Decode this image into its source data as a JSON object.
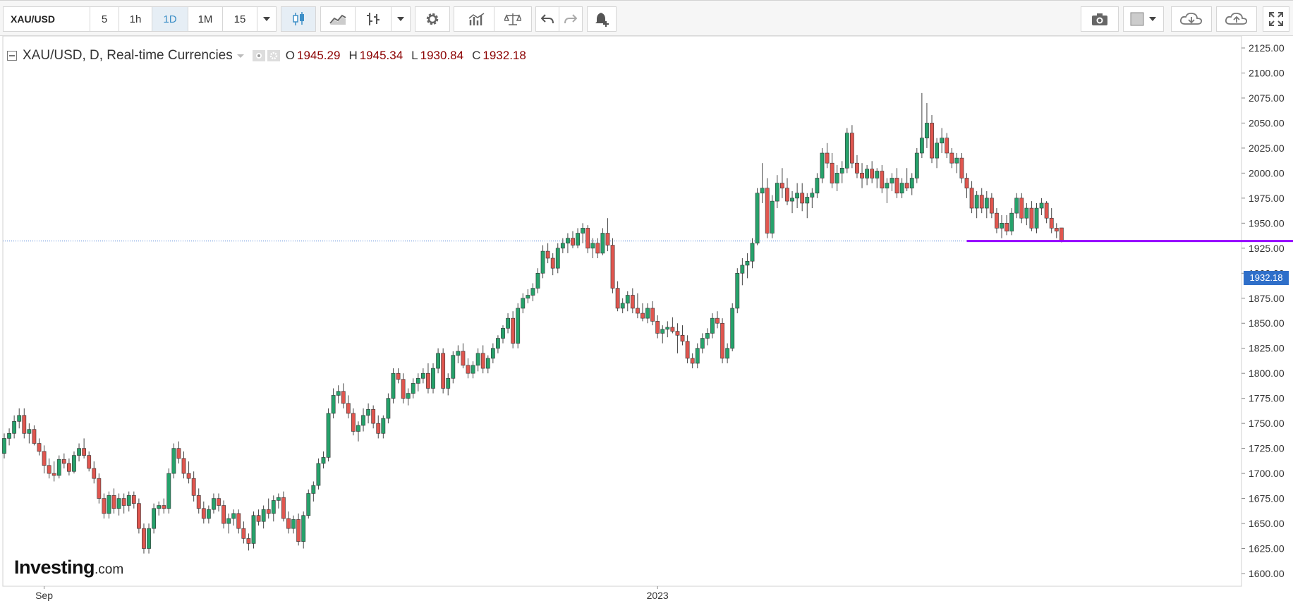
{
  "toolbar": {
    "symbol": "XAU/USD",
    "intervals": [
      "5",
      "1h",
      "1D",
      "1M",
      "15"
    ],
    "active_interval": "1D"
  },
  "legend": {
    "title": "XAU/USD, D, Real-time Currencies",
    "open_label": "O",
    "open": "1945.29",
    "high_label": "H",
    "high": "1945.34",
    "low_label": "L",
    "low": "1930.84",
    "close_label": "C",
    "close": "1932.18"
  },
  "logo": {
    "main": "Investing",
    "suffix": ".com"
  },
  "last_price_label": "1932.18",
  "colors": {
    "up": "#26a26b",
    "down": "#e0564f",
    "horizontal_line": "#9400ff",
    "price_tag": "#2f6fc9",
    "grid": "#ffffff"
  },
  "chart_data": {
    "type": "candlestick",
    "y_ticks": [
      "2125.00",
      "2100.00",
      "2075.00",
      "2050.00",
      "2025.00",
      "2000.00",
      "1975.00",
      "1950.00",
      "1925.00",
      "1900.00",
      "1875.00",
      "1850.00",
      "1825.00",
      "1800.00",
      "1775.00",
      "1750.00",
      "1725.00",
      "1700.00",
      "1675.00",
      "1650.00",
      "1625.00",
      "1600.00"
    ],
    "ylim": [
      1590,
      2130
    ],
    "x_labels": [
      {
        "label": "Sep",
        "index": 8
      },
      {
        "label": "2023",
        "index": 131
      }
    ],
    "horizontal_line": {
      "value": 1932.18,
      "from_index": 193,
      "to_index": 377
    },
    "last_price": 1932.18,
    "candles": [
      [
        1720,
        1740,
        1715,
        1735
      ],
      [
        1735,
        1745,
        1728,
        1740
      ],
      [
        1740,
        1758,
        1735,
        1752
      ],
      [
        1752,
        1765,
        1745,
        1758
      ],
      [
        1758,
        1765,
        1735,
        1740
      ],
      [
        1740,
        1750,
        1730,
        1744
      ],
      [
        1744,
        1748,
        1728,
        1730
      ],
      [
        1730,
        1735,
        1718,
        1722
      ],
      [
        1722,
        1728,
        1700,
        1708
      ],
      [
        1708,
        1715,
        1695,
        1700
      ],
      [
        1700,
        1712,
        1692,
        1698
      ],
      [
        1698,
        1718,
        1695,
        1714
      ],
      [
        1714,
        1720,
        1705,
        1710
      ],
      [
        1710,
        1715,
        1698,
        1702
      ],
      [
        1702,
        1722,
        1700,
        1718
      ],
      [
        1718,
        1730,
        1712,
        1725
      ],
      [
        1725,
        1735,
        1715,
        1718
      ],
      [
        1718,
        1722,
        1702,
        1705
      ],
      [
        1705,
        1712,
        1690,
        1695
      ],
      [
        1695,
        1700,
        1670,
        1675
      ],
      [
        1675,
        1680,
        1655,
        1660
      ],
      [
        1660,
        1682,
        1655,
        1678
      ],
      [
        1678,
        1685,
        1660,
        1665
      ],
      [
        1665,
        1680,
        1658,
        1675
      ],
      [
        1675,
        1680,
        1660,
        1668
      ],
      [
        1668,
        1682,
        1662,
        1678
      ],
      [
        1678,
        1682,
        1665,
        1670
      ],
      [
        1670,
        1675,
        1640,
        1645
      ],
      [
        1645,
        1650,
        1620,
        1625
      ],
      [
        1625,
        1650,
        1620,
        1645
      ],
      [
        1645,
        1670,
        1640,
        1665
      ],
      [
        1665,
        1672,
        1658,
        1668
      ],
      [
        1668,
        1675,
        1660,
        1665
      ],
      [
        1665,
        1705,
        1660,
        1700
      ],
      [
        1700,
        1730,
        1695,
        1725
      ],
      [
        1725,
        1732,
        1710,
        1715
      ],
      [
        1715,
        1722,
        1695,
        1700
      ],
      [
        1700,
        1712,
        1690,
        1695
      ],
      [
        1695,
        1702,
        1672,
        1678
      ],
      [
        1678,
        1685,
        1660,
        1665
      ],
      [
        1665,
        1672,
        1650,
        1655
      ],
      [
        1655,
        1668,
        1650,
        1664
      ],
      [
        1664,
        1680,
        1660,
        1675
      ],
      [
        1675,
        1680,
        1662,
        1668
      ],
      [
        1668,
        1673,
        1645,
        1650
      ],
      [
        1650,
        1660,
        1640,
        1655
      ],
      [
        1655,
        1664,
        1648,
        1660
      ],
      [
        1660,
        1664,
        1640,
        1645
      ],
      [
        1645,
        1652,
        1630,
        1635
      ],
      [
        1635,
        1640,
        1623,
        1630
      ],
      [
        1630,
        1662,
        1625,
        1658
      ],
      [
        1658,
        1664,
        1648,
        1652
      ],
      [
        1652,
        1668,
        1645,
        1664
      ],
      [
        1664,
        1675,
        1655,
        1660
      ],
      [
        1660,
        1678,
        1652,
        1673
      ],
      [
        1673,
        1680,
        1665,
        1676
      ],
      [
        1676,
        1682,
        1652,
        1655
      ],
      [
        1655,
        1662,
        1640,
        1645
      ],
      [
        1645,
        1658,
        1640,
        1654
      ],
      [
        1654,
        1660,
        1628,
        1632
      ],
      [
        1632,
        1662,
        1625,
        1658
      ],
      [
        1658,
        1684,
        1655,
        1680
      ],
      [
        1680,
        1692,
        1672,
        1688
      ],
      [
        1688,
        1715,
        1684,
        1710
      ],
      [
        1710,
        1722,
        1705,
        1716
      ],
      [
        1716,
        1765,
        1712,
        1760
      ],
      [
        1760,
        1785,
        1755,
        1778
      ],
      [
        1778,
        1788,
        1770,
        1782
      ],
      [
        1782,
        1790,
        1765,
        1770
      ],
      [
        1770,
        1778,
        1755,
        1760
      ],
      [
        1760,
        1765,
        1738,
        1742
      ],
      [
        1742,
        1752,
        1732,
        1748
      ],
      [
        1748,
        1765,
        1742,
        1758
      ],
      [
        1758,
        1770,
        1750,
        1764
      ],
      [
        1764,
        1768,
        1745,
        1750
      ],
      [
        1750,
        1758,
        1735,
        1740
      ],
      [
        1740,
        1758,
        1735,
        1755
      ],
      [
        1755,
        1780,
        1750,
        1775
      ],
      [
        1775,
        1805,
        1770,
        1800
      ],
      [
        1800,
        1805,
        1790,
        1794
      ],
      [
        1794,
        1800,
        1770,
        1775
      ],
      [
        1775,
        1785,
        1768,
        1780
      ],
      [
        1780,
        1795,
        1775,
        1790
      ],
      [
        1790,
        1800,
        1782,
        1795
      ],
      [
        1795,
        1805,
        1790,
        1800
      ],
      [
        1800,
        1810,
        1780,
        1785
      ],
      [
        1785,
        1810,
        1780,
        1805
      ],
      [
        1805,
        1825,
        1800,
        1820
      ],
      [
        1820,
        1825,
        1780,
        1785
      ],
      [
        1785,
        1800,
        1778,
        1795
      ],
      [
        1795,
        1822,
        1790,
        1818
      ],
      [
        1818,
        1828,
        1810,
        1822
      ],
      [
        1822,
        1830,
        1805,
        1808
      ],
      [
        1808,
        1815,
        1795,
        1800
      ],
      [
        1800,
        1812,
        1795,
        1808
      ],
      [
        1808,
        1825,
        1802,
        1820
      ],
      [
        1820,
        1828,
        1800,
        1805
      ],
      [
        1805,
        1818,
        1800,
        1815
      ],
      [
        1815,
        1830,
        1810,
        1825
      ],
      [
        1825,
        1838,
        1820,
        1835
      ],
      [
        1835,
        1848,
        1830,
        1845
      ],
      [
        1845,
        1860,
        1840,
        1855
      ],
      [
        1855,
        1862,
        1825,
        1830
      ],
      [
        1830,
        1870,
        1825,
        1865
      ],
      [
        1865,
        1880,
        1860,
        1875
      ],
      [
        1875,
        1884,
        1870,
        1878
      ],
      [
        1878,
        1890,
        1872,
        1885
      ],
      [
        1885,
        1905,
        1880,
        1900
      ],
      [
        1900,
        1928,
        1895,
        1922
      ],
      [
        1922,
        1930,
        1910,
        1915
      ],
      [
        1915,
        1920,
        1898,
        1905
      ],
      [
        1905,
        1930,
        1900,
        1925
      ],
      [
        1925,
        1935,
        1920,
        1930
      ],
      [
        1930,
        1940,
        1920,
        1935
      ],
      [
        1935,
        1942,
        1925,
        1928
      ],
      [
        1928,
        1945,
        1925,
        1940
      ],
      [
        1940,
        1950,
        1930,
        1945
      ],
      [
        1945,
        1948,
        1920,
        1925
      ],
      [
        1925,
        1935,
        1915,
        1930
      ],
      [
        1930,
        1935,
        1915,
        1920
      ],
      [
        1920,
        1945,
        1918,
        1940
      ],
      [
        1940,
        1955,
        1922,
        1928
      ],
      [
        1928,
        1935,
        1880,
        1885
      ],
      [
        1885,
        1892,
        1862,
        1865
      ],
      [
        1865,
        1875,
        1860,
        1870
      ],
      [
        1870,
        1882,
        1862,
        1878
      ],
      [
        1878,
        1885,
        1860,
        1865
      ],
      [
        1865,
        1880,
        1855,
        1860
      ],
      [
        1860,
        1870,
        1852,
        1855
      ],
      [
        1855,
        1870,
        1850,
        1865
      ],
      [
        1865,
        1872,
        1848,
        1852
      ],
      [
        1852,
        1858,
        1835,
        1840
      ],
      [
        1840,
        1848,
        1830,
        1844
      ],
      [
        1844,
        1852,
        1836,
        1846
      ],
      [
        1846,
        1856,
        1840,
        1842
      ],
      [
        1842,
        1850,
        1820,
        1838
      ],
      [
        1838,
        1848,
        1828,
        1832
      ],
      [
        1832,
        1838,
        1810,
        1815
      ],
      [
        1815,
        1820,
        1805,
        1810
      ],
      [
        1810,
        1830,
        1805,
        1825
      ],
      [
        1825,
        1840,
        1820,
        1835
      ],
      [
        1835,
        1845,
        1828,
        1840
      ],
      [
        1840,
        1860,
        1835,
        1855
      ],
      [
        1855,
        1862,
        1845,
        1850
      ],
      [
        1850,
        1855,
        1810,
        1815
      ],
      [
        1815,
        1830,
        1810,
        1825
      ],
      [
        1825,
        1870,
        1822,
        1865
      ],
      [
        1865,
        1905,
        1860,
        1900
      ],
      [
        1900,
        1915,
        1888,
        1908
      ],
      [
        1908,
        1920,
        1895,
        1912
      ],
      [
        1912,
        1935,
        1905,
        1930
      ],
      [
        1930,
        1985,
        1928,
        1980
      ],
      [
        1980,
        2010,
        1970,
        1985
      ],
      [
        1985,
        1995,
        1935,
        1940
      ],
      [
        1940,
        1978,
        1935,
        1972
      ],
      [
        1972,
        1998,
        1965,
        1990
      ],
      [
        1990,
        2005,
        1975,
        1985
      ],
      [
        1985,
        1995,
        1968,
        1972
      ],
      [
        1972,
        1982,
        1960,
        1975
      ],
      [
        1975,
        1990,
        1965,
        1980
      ],
      [
        1980,
        1990,
        1962,
        1970
      ],
      [
        1970,
        1980,
        1955,
        1976
      ],
      [
        1976,
        1985,
        1965,
        1980
      ],
      [
        1980,
        2000,
        1975,
        1995
      ],
      [
        1995,
        2025,
        1990,
        2020
      ],
      [
        2020,
        2030,
        2005,
        2010
      ],
      [
        2010,
        2020,
        1985,
        1990
      ],
      [
        1990,
        2008,
        1982,
        2000
      ],
      [
        2000,
        2012,
        1990,
        2005
      ],
      [
        2005,
        2045,
        2000,
        2040
      ],
      [
        2040,
        2048,
        2005,
        2010
      ],
      [
        2010,
        2018,
        1995,
        2000
      ],
      [
        2000,
        2010,
        1985,
        1995
      ],
      [
        1995,
        2008,
        1988,
        2004
      ],
      [
        2004,
        2012,
        1990,
        1995
      ],
      [
        1995,
        2005,
        1985,
        2002
      ],
      [
        2002,
        2008,
        1980,
        1985
      ],
      [
        1985,
        1995,
        1970,
        1990
      ],
      [
        1990,
        2000,
        1982,
        1995
      ],
      [
        1995,
        2005,
        1975,
        1980
      ],
      [
        1980,
        1995,
        1975,
        1990
      ],
      [
        1990,
        2005,
        1982,
        1985
      ],
      [
        1985,
        2000,
        1978,
        1995
      ],
      [
        1995,
        2025,
        1990,
        2020
      ],
      [
        2020,
        2080,
        2015,
        2035
      ],
      [
        2035,
        2070,
        2025,
        2050
      ],
      [
        2050,
        2058,
        2010,
        2015
      ],
      [
        2015,
        2035,
        2005,
        2030
      ],
      [
        2030,
        2045,
        2020,
        2035
      ],
      [
        2035,
        2040,
        2015,
        2020
      ],
      [
        2020,
        2025,
        2005,
        2010
      ],
      [
        2010,
        2020,
        2000,
        2015
      ],
      [
        2015,
        2020,
        1990,
        1995
      ],
      [
        1995,
        2000,
        1975,
        1985
      ],
      [
        1985,
        1992,
        1960,
        1965
      ],
      [
        1965,
        1982,
        1955,
        1978
      ],
      [
        1978,
        1985,
        1960,
        1965
      ],
      [
        1965,
        1982,
        1955,
        1975
      ],
      [
        1975,
        1980,
        1955,
        1960
      ],
      [
        1960,
        1965,
        1940,
        1945
      ],
      [
        1945,
        1958,
        1935,
        1950
      ],
      [
        1950,
        1958,
        1938,
        1942
      ],
      [
        1942,
        1965,
        1938,
        1960
      ],
      [
        1960,
        1980,
        1955,
        1975
      ],
      [
        1975,
        1980,
        1950,
        1955
      ],
      [
        1955,
        1970,
        1948,
        1965
      ],
      [
        1965,
        1972,
        1942,
        1945
      ],
      [
        1945,
        1970,
        1940,
        1965
      ],
      [
        1965,
        1975,
        1958,
        1970
      ],
      [
        1970,
        1972,
        1950,
        1955
      ],
      [
        1955,
        1965,
        1940,
        1945
      ],
      [
        1945,
        1950,
        1935,
        1942
      ],
      [
        1945.29,
        1945.34,
        1930.84,
        1932.18
      ]
    ]
  }
}
